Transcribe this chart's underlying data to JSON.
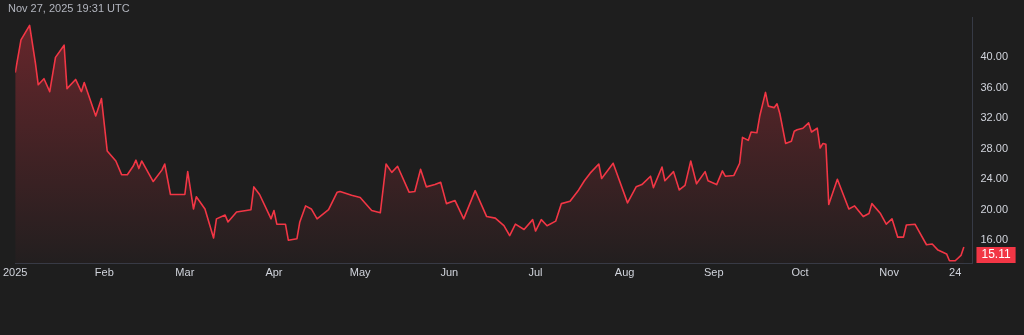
{
  "chart_data": {
    "type": "area",
    "annotations": [
      "Nov 27, 2025 19:31 UTC",
      {
        "text": "15.11",
        "x": "2025-11-27",
        "y": 15.11
      }
    ],
    "x": [
      "2025-01-01",
      "2025-01-03",
      "2025-01-06",
      "2025-01-08",
      "2025-01-09",
      "2025-01-11",
      "2025-01-13",
      "2025-01-15",
      "2025-01-18",
      "2025-01-19",
      "2025-01-22",
      "2025-01-24",
      "2025-01-25",
      "2025-01-29",
      "2025-01-31",
      "2025-02-02",
      "2025-02-05",
      "2025-02-07",
      "2025-02-09",
      "2025-02-11",
      "2025-02-12",
      "2025-02-13",
      "2025-02-14",
      "2025-02-18",
      "2025-02-21",
      "2025-02-22",
      "2025-02-24",
      "2025-02-27",
      "2025-03-01",
      "2025-03-02",
      "2025-03-04",
      "2025-03-05",
      "2025-03-08",
      "2025-03-11",
      "2025-03-12",
      "2025-03-15",
      "2025-03-16",
      "2025-03-19",
      "2025-03-24",
      "2025-03-25",
      "2025-03-27",
      "2025-03-31",
      "2025-04-01",
      "2025-04-02",
      "2025-04-05",
      "2025-04-06",
      "2025-04-09",
      "2025-04-10",
      "2025-04-12",
      "2025-04-14",
      "2025-04-16",
      "2025-04-20",
      "2025-04-23",
      "2025-04-24",
      "2025-04-28",
      "2025-05-01",
      "2025-05-05",
      "2025-05-08",
      "2025-05-10",
      "2025-05-12",
      "2025-05-14",
      "2025-05-18",
      "2025-05-20",
      "2025-05-22",
      "2025-05-24",
      "2025-05-27",
      "2025-05-29",
      "2025-05-31",
      "2025-06-03",
      "2025-06-06",
      "2025-06-10",
      "2025-06-14",
      "2025-06-17",
      "2025-06-20",
      "2025-06-22",
      "2025-06-24",
      "2025-06-27",
      "2025-06-30",
      "2025-07-01",
      "2025-07-03",
      "2025-07-05",
      "2025-07-08",
      "2025-07-10",
      "2025-07-13",
      "2025-07-16",
      "2025-07-18",
      "2025-07-20",
      "2025-07-23",
      "2025-07-24",
      "2025-07-28",
      "2025-08-02",
      "2025-08-05",
      "2025-08-07",
      "2025-08-10",
      "2025-08-11",
      "2025-08-14",
      "2025-08-15",
      "2025-08-18",
      "2025-08-20",
      "2025-08-22",
      "2025-08-24",
      "2025-08-26",
      "2025-08-29",
      "2025-08-30",
      "2025-09-02",
      "2025-09-04",
      "2025-09-05",
      "2025-09-08",
      "2025-09-10",
      "2025-09-11",
      "2025-09-13",
      "2025-09-14",
      "2025-09-16",
      "2025-09-17",
      "2025-09-19",
      "2025-09-20",
      "2025-09-22",
      "2025-09-23",
      "2025-09-24",
      "2025-09-26",
      "2025-09-28",
      "2025-09-29",
      "2025-09-30",
      "2025-10-02",
      "2025-10-04",
      "2025-10-05",
      "2025-10-07",
      "2025-10-08",
      "2025-10-09",
      "2025-10-10",
      "2025-10-11",
      "2025-10-14",
      "2025-10-18",
      "2025-10-20",
      "2025-10-23",
      "2025-10-25",
      "2025-10-26",
      "2025-10-29",
      "2025-10-31",
      "2025-11-02",
      "2025-11-04",
      "2025-11-06",
      "2025-11-07",
      "2025-11-10",
      "2025-11-14",
      "2025-11-16",
      "2025-11-18",
      "2025-11-21",
      "2025-11-22",
      "2025-11-24",
      "2025-11-26",
      "2025-11-27"
    ],
    "series": [
      {
        "color": "#f23645",
        "values": [
          38.0,
          42.3,
          44.2,
          39.3,
          36.4,
          37.2,
          35.5,
          40.0,
          41.6,
          35.9,
          37.1,
          35.5,
          36.7,
          32.3,
          34.6,
          27.7,
          26.4,
          24.6,
          24.6,
          25.7,
          26.5,
          25.4,
          26.4,
          23.7,
          25.2,
          26.0,
          22.0,
          22.0,
          22.0,
          25.0,
          20.1,
          21.7,
          20.1,
          16.3,
          18.8,
          19.3,
          18.4,
          19.7,
          20.0,
          23.0,
          22.0,
          18.8,
          19.9,
          18.1,
          18.1,
          16.0,
          16.2,
          18.4,
          20.5,
          20.1,
          18.8,
          20.0,
          22.3,
          22.4,
          21.9,
          21.6,
          19.9,
          19.6,
          26.0,
          24.9,
          25.7,
          22.3,
          22.4,
          25.3,
          23.0,
          23.3,
          23.6,
          20.8,
          21.2,
          18.8,
          22.5,
          19.1,
          18.9,
          17.9,
          16.6,
          18.1,
          17.4,
          18.7,
          17.2,
          18.7,
          17.9,
          18.5,
          20.8,
          21.1,
          22.6,
          23.8,
          24.8,
          26.0,
          24.1,
          26.1,
          20.9,
          23.0,
          23.3,
          24.4,
          22.9,
          25.6,
          23.8,
          25.0,
          22.6,
          23.2,
          26.4,
          23.4,
          25.0,
          23.8,
          23.3,
          25.1,
          24.4,
          24.5,
          26.1,
          29.5,
          29.1,
          30.2,
          30.1,
          32.3,
          35.4,
          33.6,
          33.4,
          33.9,
          32.6,
          28.7,
          29.0,
          30.3,
          30.5,
          30.7,
          31.4,
          30.2,
          30.7,
          28.1,
          28.7,
          28.6,
          20.7,
          24.0,
          20.1,
          20.5,
          19.1,
          19.5,
          20.8,
          19.5,
          18.1,
          18.8,
          16.4,
          16.4,
          18.0,
          18.1,
          15.4,
          15.5,
          14.7,
          14.2,
          13.3,
          13.3,
          14.0,
          15.11
        ]
      }
    ],
    "xlim": [
      "2025-01-01",
      "2025-11-30"
    ],
    "ylim": [
      12.9,
      45.3
    ],
    "xticks": [
      {
        "value": "2025-01-01",
        "label": "2025"
      },
      {
        "value": "2025-02-01",
        "label": "Feb"
      },
      {
        "value": "2025-03-01",
        "label": "Mar"
      },
      {
        "value": "2025-04-01",
        "label": "Apr"
      },
      {
        "value": "2025-05-01",
        "label": "May"
      },
      {
        "value": "2025-06-01",
        "label": "Jun"
      },
      {
        "value": "2025-07-01",
        "label": "Jul"
      },
      {
        "value": "2025-08-01",
        "label": "Aug"
      },
      {
        "value": "2025-09-01",
        "label": "Sep"
      },
      {
        "value": "2025-10-01",
        "label": "Oct"
      },
      {
        "value": "2025-11-01",
        "label": "Nov"
      },
      {
        "value": "2025-11-24",
        "label": "24"
      }
    ],
    "yticks": [
      {
        "value": 16,
        "label": "16.00"
      },
      {
        "value": 20,
        "label": "20.00"
      },
      {
        "value": 24,
        "label": "24.00"
      },
      {
        "value": 28,
        "label": "28.00"
      },
      {
        "value": 32,
        "label": "32.00"
      },
      {
        "value": 36,
        "label": "36.00"
      },
      {
        "value": 40,
        "label": "40.00"
      }
    ]
  }
}
